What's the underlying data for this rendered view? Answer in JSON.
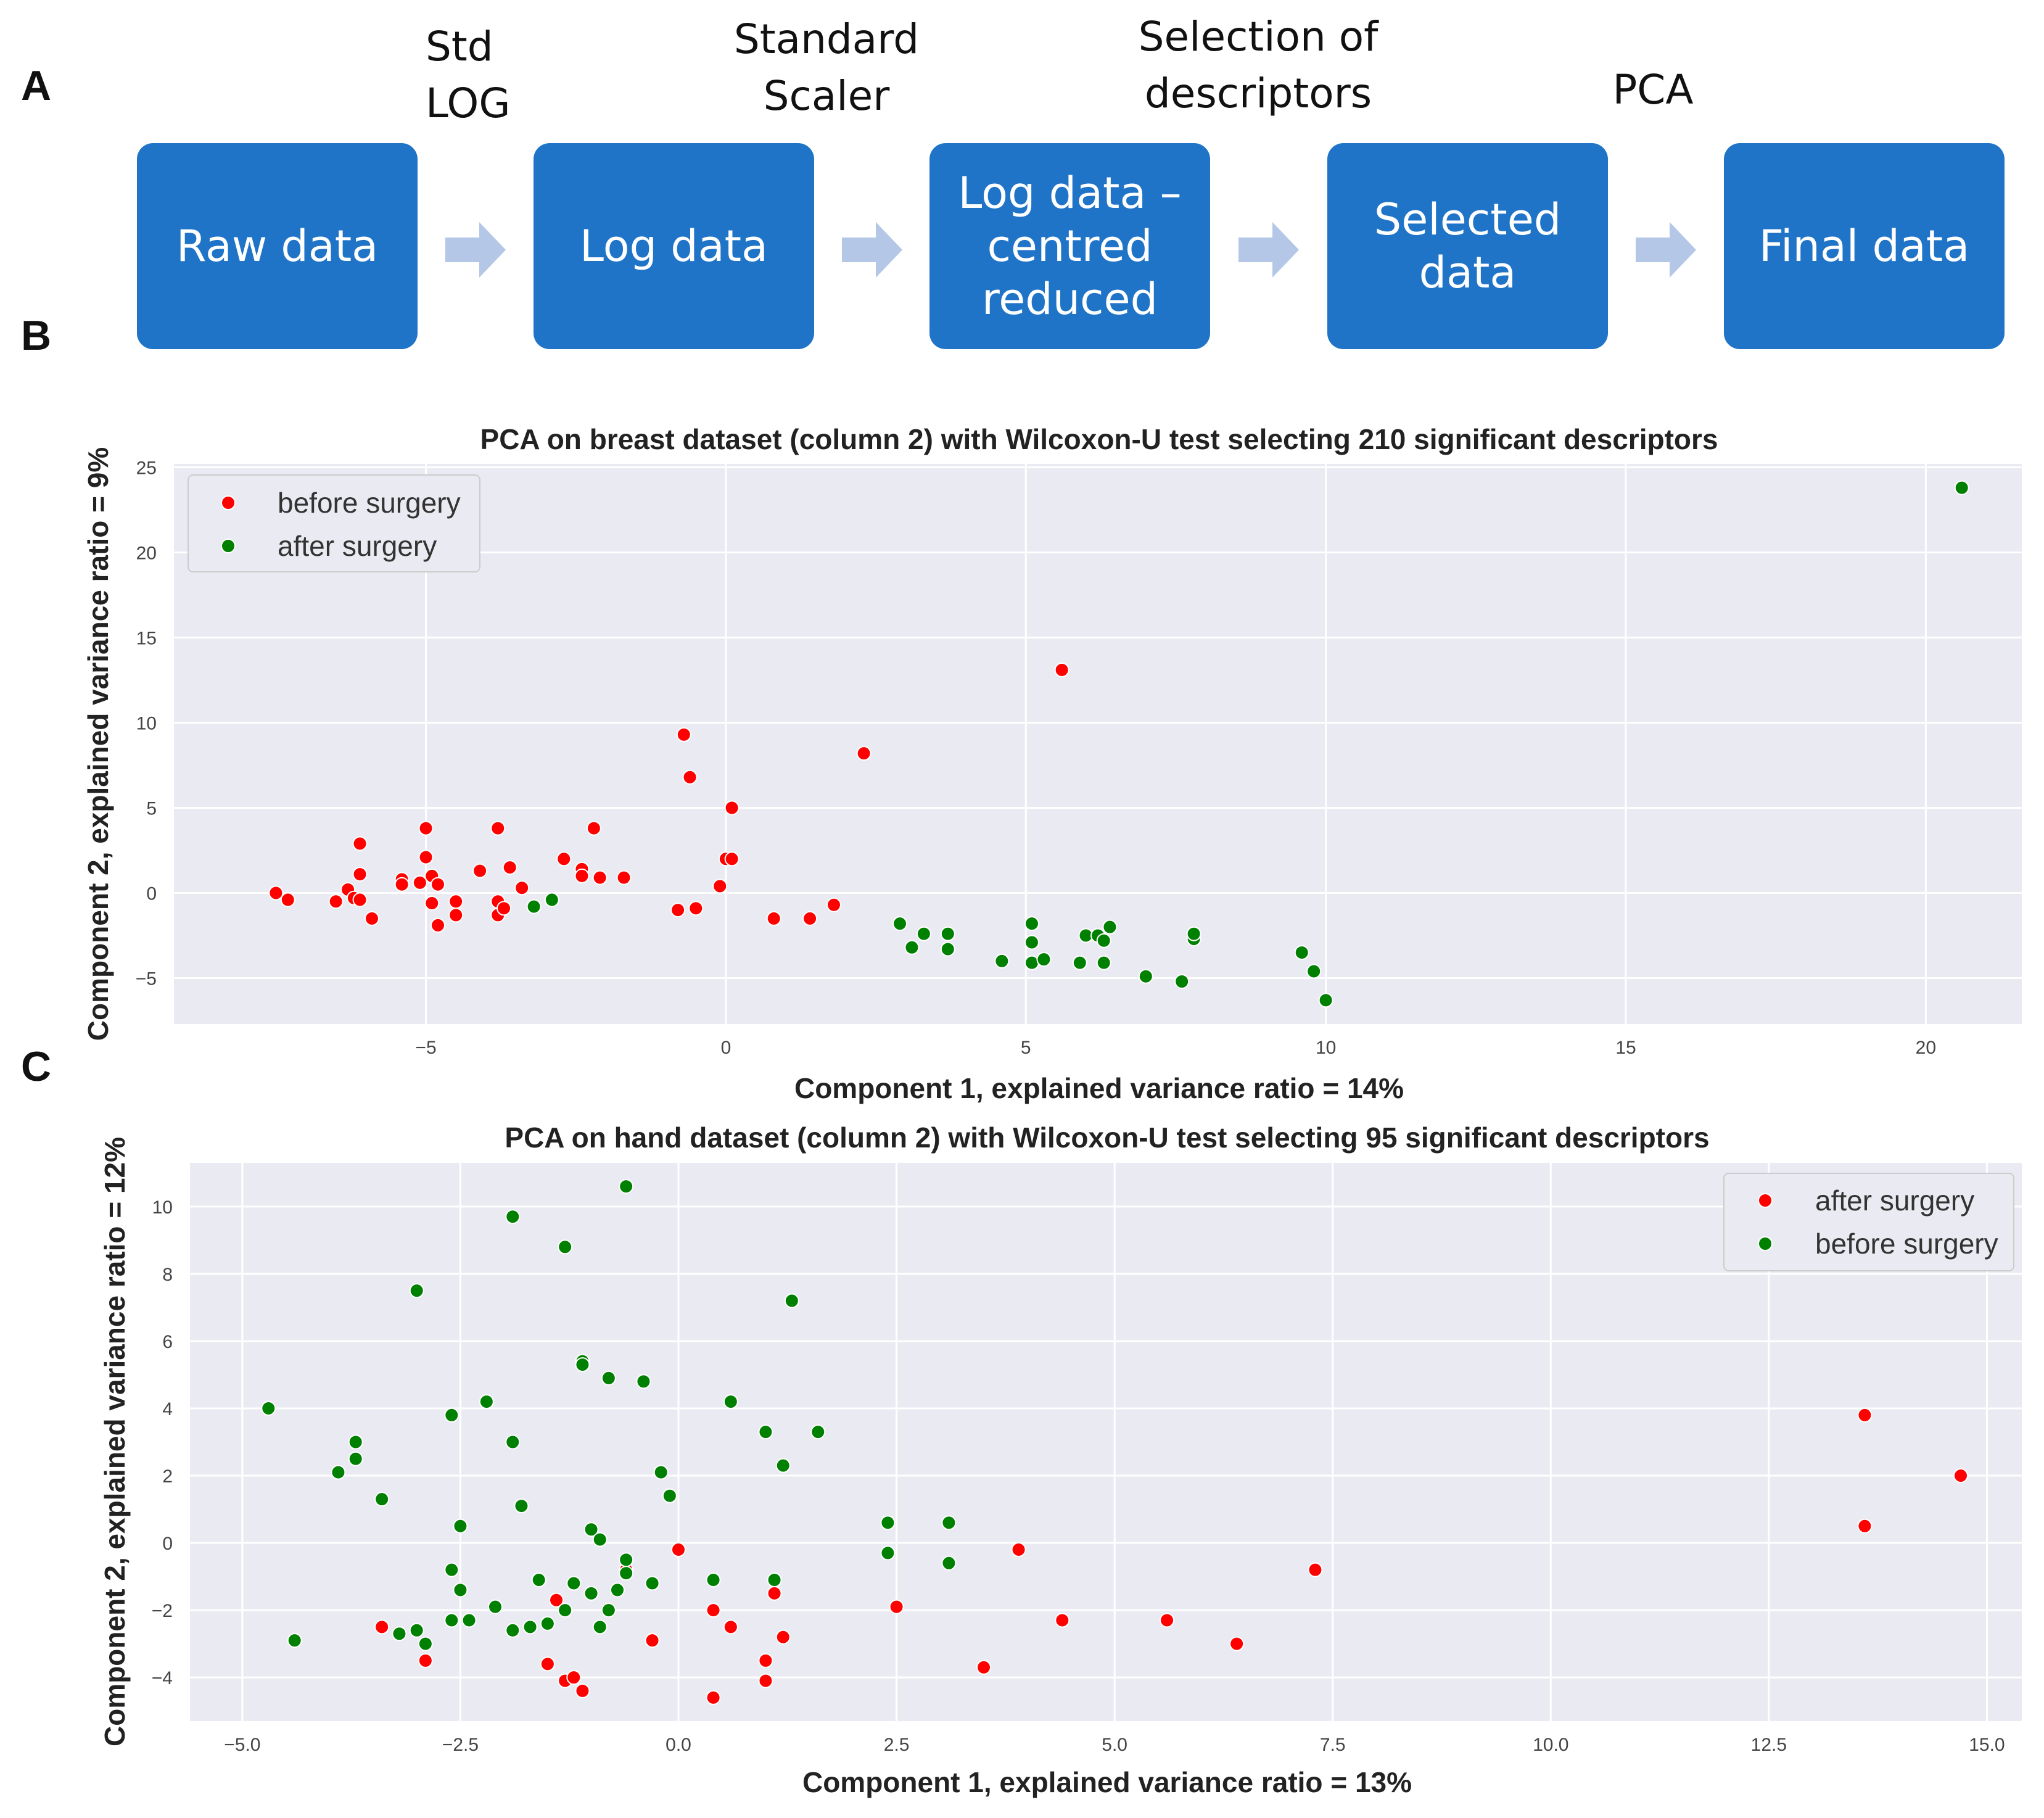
{
  "panels": {
    "a": "A",
    "b": "B",
    "c": "C"
  },
  "flow": {
    "steps": [
      {
        "label": "Std\nLOG"
      },
      {
        "label": "Standard\nScaler"
      },
      {
        "label": "Selection of\ndescriptors"
      },
      {
        "label": "PCA"
      }
    ],
    "boxes": [
      {
        "label": "Raw data"
      },
      {
        "label": "Log data"
      },
      {
        "label": "Log data –\ncentred\nreduced"
      },
      {
        "label": "Selected\ndata"
      },
      {
        "label": "Final data"
      }
    ],
    "box_color": "#1f74c8",
    "arrow_color": "#b4c7e7"
  },
  "colors": {
    "red": "#ff0000",
    "green": "#008000",
    "plot_bg": "#eaeaf2",
    "grid": "#ffffff"
  },
  "chart_data": [
    {
      "type": "scatter",
      "title": "PCA on breast dataset (column 2) with Wilcoxon-U test selecting 210 significant descriptors",
      "xlabel": "Component 1, explained variance ratio = 14%",
      "ylabel": "Component 2, explained variance ratio = 9%",
      "xlim": [
        -9.2,
        21.6
      ],
      "ylim": [
        -7.7,
        25.2
      ],
      "xticks": [
        -5,
        0,
        5,
        10,
        15,
        20
      ],
      "xtick_labels": [
        "−5",
        "0",
        "5",
        "10",
        "15",
        "20"
      ],
      "yticks": [
        -5,
        0,
        5,
        10,
        15,
        20,
        25
      ],
      "ytick_labels": [
        "−5",
        "0",
        "5",
        "10",
        "15",
        "20",
        "25"
      ],
      "legend_position": "top-left",
      "series": [
        {
          "name": "before surgery",
          "color": "#ff0000",
          "points": [
            [
              -7.5,
              0.0
            ],
            [
              -7.3,
              -0.4
            ],
            [
              -6.5,
              -0.5
            ],
            [
              -6.3,
              0.2
            ],
            [
              -6.2,
              -0.3
            ],
            [
              -6.1,
              2.9
            ],
            [
              -6.1,
              1.1
            ],
            [
              -6.1,
              -0.4
            ],
            [
              -5.9,
              -1.5
            ],
            [
              -5.4,
              0.8
            ],
            [
              -5.4,
              0.5
            ],
            [
              -5.1,
              0.6
            ],
            [
              -5.0,
              3.8
            ],
            [
              -5.0,
              2.1
            ],
            [
              -4.9,
              1.0
            ],
            [
              -4.9,
              -0.6
            ],
            [
              -4.8,
              0.5
            ],
            [
              -4.8,
              -1.9
            ],
            [
              -4.5,
              -0.5
            ],
            [
              -4.5,
              -1.3
            ],
            [
              -4.1,
              1.3
            ],
            [
              -3.8,
              3.8
            ],
            [
              -3.8,
              -0.5
            ],
            [
              -3.8,
              -1.3
            ],
            [
              -3.7,
              -0.9
            ],
            [
              -3.6,
              1.5
            ],
            [
              -3.4,
              0.3
            ],
            [
              -2.7,
              2.0
            ],
            [
              -2.4,
              1.4
            ],
            [
              -2.4,
              1.0
            ],
            [
              -2.2,
              3.8
            ],
            [
              -2.1,
              0.9
            ],
            [
              -1.7,
              0.9
            ],
            [
              -0.8,
              -1.0
            ],
            [
              -0.7,
              9.3
            ],
            [
              -0.6,
              6.8
            ],
            [
              -0.5,
              -0.9
            ],
            [
              -0.1,
              0.4
            ],
            [
              0.0,
              2.0
            ],
            [
              0.1,
              2.0
            ],
            [
              0.1,
              5.0
            ],
            [
              0.8,
              -1.5
            ],
            [
              1.4,
              -1.5
            ],
            [
              1.8,
              -0.7
            ],
            [
              2.3,
              8.2
            ],
            [
              5.6,
              13.1
            ]
          ]
        },
        {
          "name": "after surgery",
          "color": "#008000",
          "points": [
            [
              -3.2,
              -0.8
            ],
            [
              -2.9,
              -0.4
            ],
            [
              2.9,
              -1.8
            ],
            [
              3.1,
              -3.2
            ],
            [
              3.3,
              -2.4
            ],
            [
              3.7,
              -2.4
            ],
            [
              3.7,
              -3.3
            ],
            [
              4.6,
              -4.0
            ],
            [
              5.1,
              -1.8
            ],
            [
              5.1,
              -2.9
            ],
            [
              5.1,
              -4.1
            ],
            [
              5.3,
              -3.9
            ],
            [
              5.9,
              -4.1
            ],
            [
              6.0,
              -2.5
            ],
            [
              6.2,
              -2.5
            ],
            [
              6.3,
              -2.8
            ],
            [
              6.3,
              -4.1
            ],
            [
              6.4,
              -2.0
            ],
            [
              7.0,
              -4.9
            ],
            [
              7.6,
              -5.2
            ],
            [
              7.8,
              -2.7
            ],
            [
              7.8,
              -2.4
            ],
            [
              9.6,
              -3.5
            ],
            [
              9.8,
              -4.6
            ],
            [
              10.0,
              -6.3
            ],
            [
              20.6,
              23.8
            ]
          ]
        }
      ]
    },
    {
      "type": "scatter",
      "title": "PCA on hand dataset (column 2) with Wilcoxon-U test selecting 95 significant descriptors",
      "xlabel": "Component 1, explained variance ratio = 13%",
      "ylabel": "Component 2, explained variance ratio = 12%",
      "xlim": [
        -5.6,
        15.4
      ],
      "ylim": [
        -5.3,
        11.3
      ],
      "xticks": [
        -5.0,
        -2.5,
        0.0,
        2.5,
        5.0,
        7.5,
        10.0,
        12.5,
        15.0
      ],
      "xtick_labels": [
        "−5.0",
        "−2.5",
        "0.0",
        "2.5",
        "5.0",
        "7.5",
        "10.0",
        "12.5",
        "15.0"
      ],
      "yticks": [
        -4,
        -2,
        0,
        2,
        4,
        6,
        8,
        10
      ],
      "ytick_labels": [
        "−4",
        "−2",
        "0",
        "2",
        "4",
        "6",
        "8",
        "10"
      ],
      "legend_position": "top-right",
      "series": [
        {
          "name": "after surgery",
          "color": "#ff0000",
          "points": [
            [
              -3.4,
              -2.5
            ],
            [
              -2.9,
              -3.5
            ],
            [
              -1.5,
              -3.6
            ],
            [
              -1.4,
              -1.7
            ],
            [
              -1.3,
              -4.1
            ],
            [
              -1.2,
              -4.0
            ],
            [
              -1.1,
              -4.4
            ],
            [
              -1.0,
              -1.5
            ],
            [
              -0.6,
              -0.8
            ],
            [
              -0.3,
              -2.9
            ],
            [
              0.0,
              -0.2
            ],
            [
              0.4,
              -2.0
            ],
            [
              0.4,
              -4.6
            ],
            [
              0.6,
              -2.5
            ],
            [
              1.0,
              -3.5
            ],
            [
              1.0,
              -4.1
            ],
            [
              1.1,
              -1.5
            ],
            [
              1.2,
              -2.8
            ],
            [
              2.5,
              -1.9
            ],
            [
              3.5,
              -3.7
            ],
            [
              3.9,
              -0.2
            ],
            [
              4.4,
              -2.3
            ],
            [
              5.6,
              -2.3
            ],
            [
              6.4,
              -3.0
            ],
            [
              7.3,
              -0.8
            ],
            [
              13.6,
              3.8
            ],
            [
              13.6,
              0.5
            ],
            [
              14.7,
              2.0
            ]
          ]
        },
        {
          "name": "before surgery",
          "color": "#008000",
          "points": [
            [
              -4.7,
              4.0
            ],
            [
              -4.4,
              -2.9
            ],
            [
              -3.9,
              2.1
            ],
            [
              -3.7,
              2.5
            ],
            [
              -3.7,
              3.0
            ],
            [
              -3.4,
              1.3
            ],
            [
              -3.2,
              -2.7
            ],
            [
              -3.0,
              7.5
            ],
            [
              -3.0,
              -2.6
            ],
            [
              -2.9,
              -3.0
            ],
            [
              -2.6,
              3.8
            ],
            [
              -2.6,
              -0.8
            ],
            [
              -2.6,
              -2.3
            ],
            [
              -2.5,
              0.5
            ],
            [
              -2.5,
              -1.4
            ],
            [
              -2.4,
              -2.3
            ],
            [
              -2.2,
              4.2
            ],
            [
              -2.1,
              -1.9
            ],
            [
              -1.9,
              9.7
            ],
            [
              -1.9,
              3.0
            ],
            [
              -1.9,
              -2.6
            ],
            [
              -1.8,
              1.1
            ],
            [
              -1.7,
              -2.5
            ],
            [
              -1.6,
              -1.1
            ],
            [
              -1.5,
              -2.4
            ],
            [
              -1.3,
              8.8
            ],
            [
              -1.3,
              -2.0
            ],
            [
              -1.2,
              -1.2
            ],
            [
              -1.1,
              5.4
            ],
            [
              -1.1,
              5.3
            ],
            [
              -1.0,
              0.4
            ],
            [
              -1.0,
              -1.5
            ],
            [
              -0.9,
              0.1
            ],
            [
              -0.9,
              -2.5
            ],
            [
              -0.8,
              4.9
            ],
            [
              -0.8,
              -2.0
            ],
            [
              -0.7,
              -1.4
            ],
            [
              -0.6,
              10.6
            ],
            [
              -0.6,
              -0.5
            ],
            [
              -0.6,
              -0.9
            ],
            [
              -0.4,
              4.8
            ],
            [
              -0.3,
              -1.2
            ],
            [
              -0.2,
              2.1
            ],
            [
              -0.1,
              1.4
            ],
            [
              0.4,
              -1.1
            ],
            [
              0.6,
              4.2
            ],
            [
              1.0,
              3.3
            ],
            [
              1.1,
              -1.1
            ],
            [
              1.2,
              2.3
            ],
            [
              1.3,
              7.2
            ],
            [
              1.6,
              3.3
            ],
            [
              2.4,
              0.6
            ],
            [
              2.4,
              -0.3
            ],
            [
              3.1,
              0.6
            ],
            [
              3.1,
              -0.6
            ]
          ]
        }
      ]
    }
  ]
}
